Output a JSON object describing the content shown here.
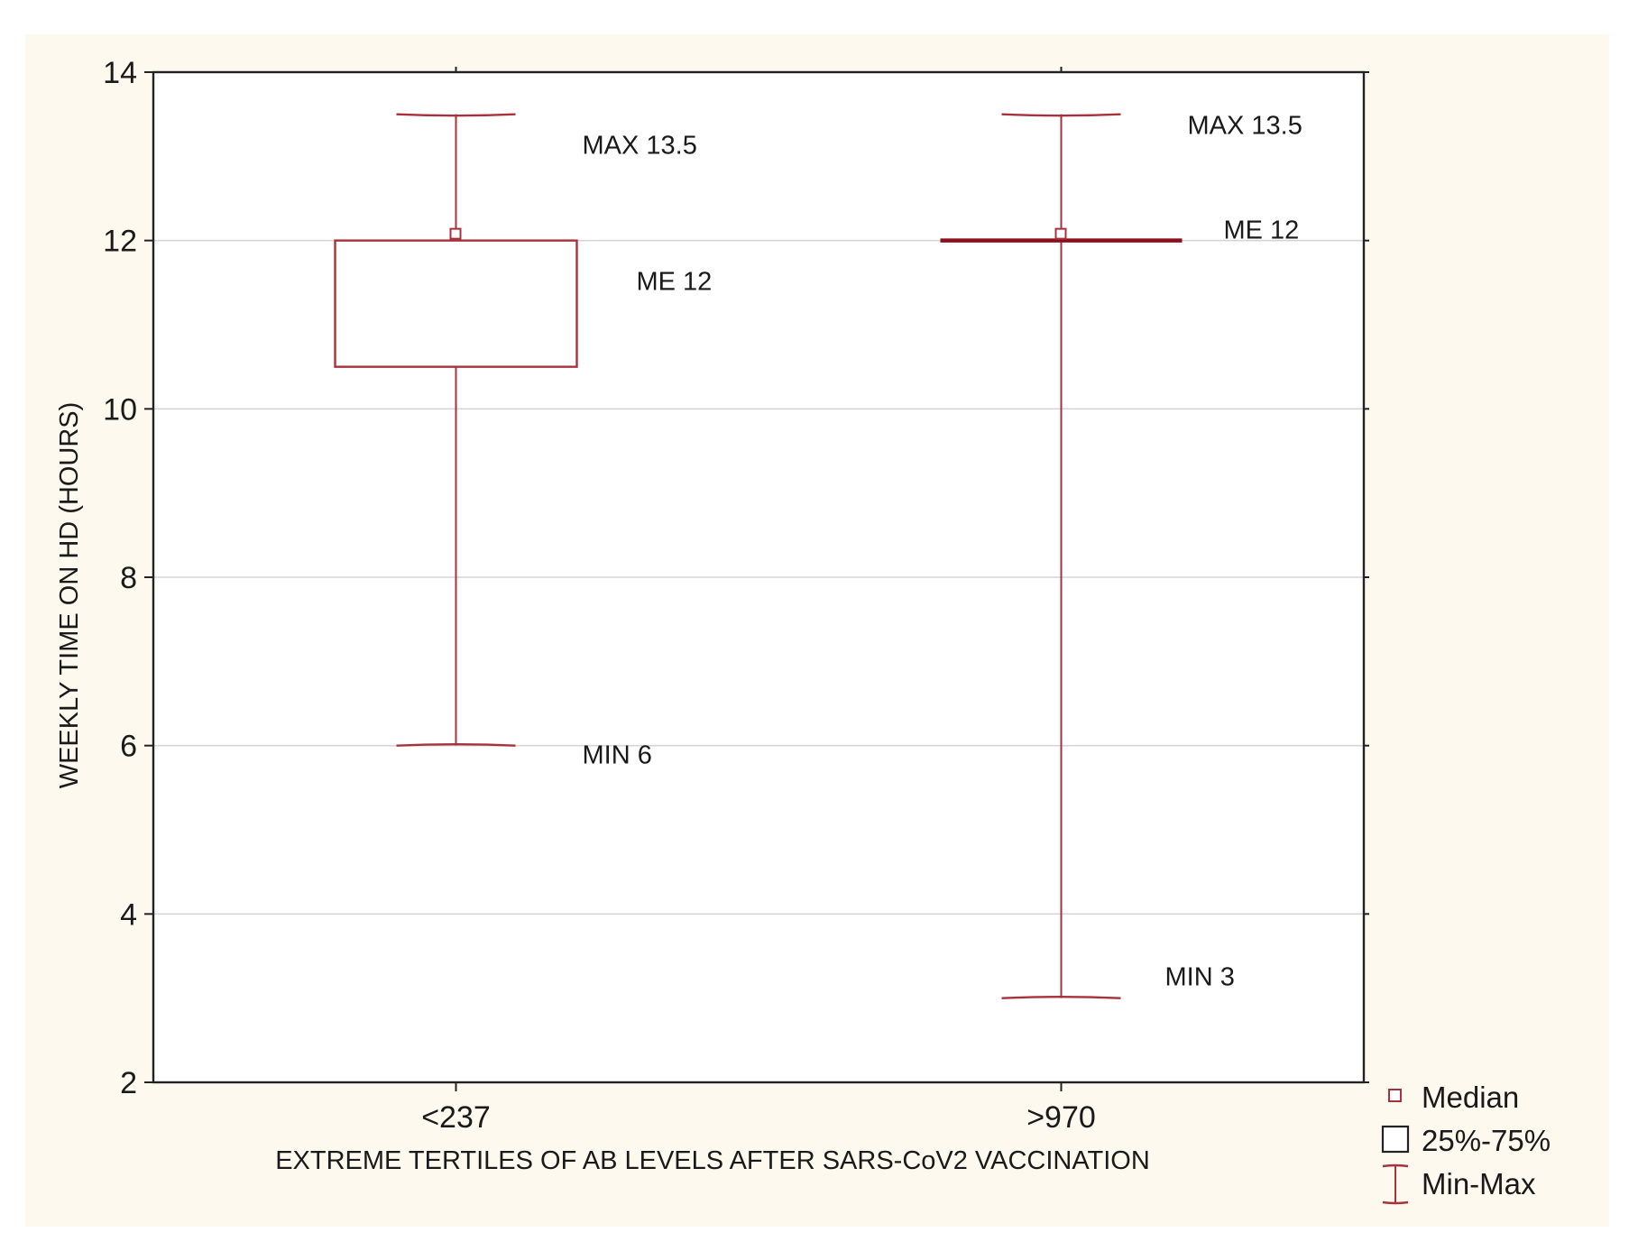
{
  "chart_data": {
    "type": "box",
    "xlabel": "EXTREME TERTILES OF AB LEVELS AFTER SARS-CoV2 VACCINATION",
    "ylabel": "WEEKLY TIME ON HD (HOURS)",
    "ylim": [
      2,
      14
    ],
    "yticks": [
      2,
      4,
      6,
      8,
      10,
      12,
      14
    ],
    "grid": true,
    "legend_position": "bottom-right, outside plot",
    "legend": [
      {
        "label": "Median",
        "symbol": "small-square"
      },
      {
        "label": "25%-75%",
        "symbol": "box"
      },
      {
        "label": "Min-Max",
        "symbol": "whisker"
      }
    ],
    "categories": [
      "<237",
      ">970"
    ],
    "boxes": [
      {
        "category": "<237",
        "min": 6,
        "q1": 10.5,
        "median": 12,
        "q3": 12,
        "max": 13.5,
        "annotations": {
          "max": "MAX 13.5",
          "median": "ME 12",
          "min": "MIN 6"
        }
      },
      {
        "category": ">970",
        "min": 3,
        "q1": 12,
        "median": 12,
        "q3": 12,
        "max": 13.5,
        "annotations": {
          "max": "MAX 13.5",
          "median": "ME 12",
          "min": "MIN 3"
        }
      }
    ],
    "colors": {
      "whisker": "#a8323c",
      "box_edge": "#a8323c",
      "collapsed_box": "#8b0f1a",
      "axis": "#222222",
      "grid": "#d6d6d6",
      "background": "#fdf9ee"
    }
  }
}
